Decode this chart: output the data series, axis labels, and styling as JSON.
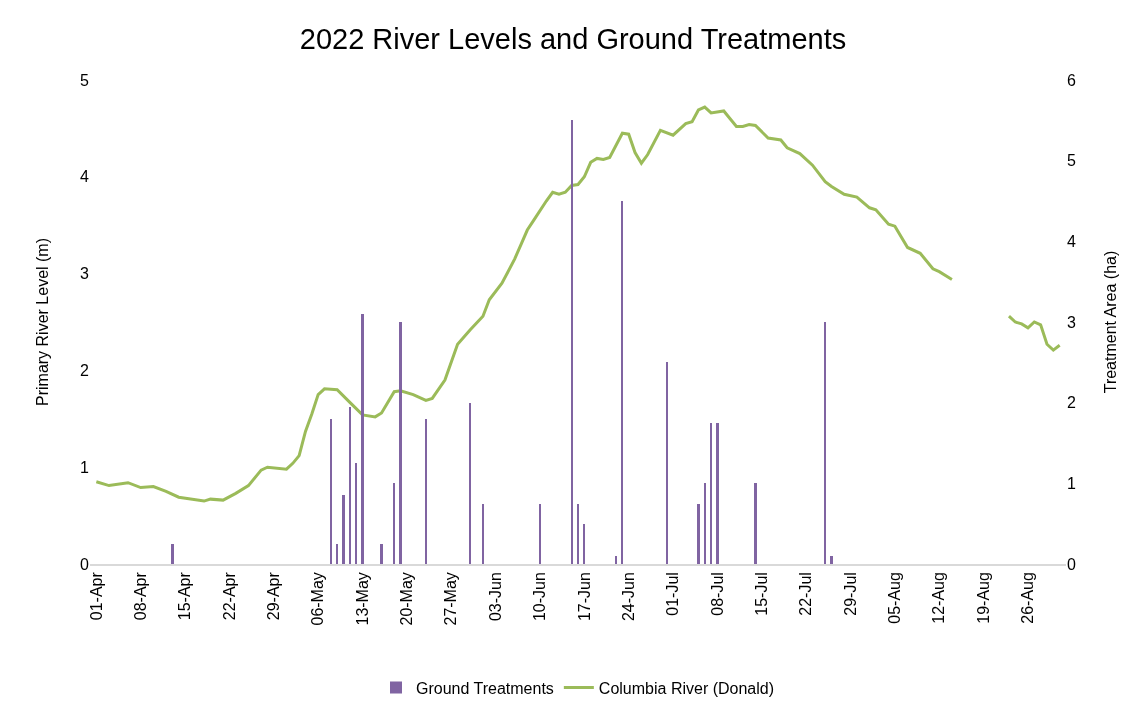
{
  "chart_data": {
    "type": "line",
    "title": "2022 River Levels and Ground Treatments",
    "ylabel": "Primary River Level (m)",
    "y2label": "Treatment Area (ha)",
    "xlim": [
      "2022-03-31",
      "2022-09-01"
    ],
    "xticks": [
      {
        "value": "2022-04-01",
        "label": "01-Apr"
      },
      {
        "value": "2022-04-08",
        "label": "08-Apr"
      },
      {
        "value": "2022-04-15",
        "label": "15-Apr"
      },
      {
        "value": "2022-04-22",
        "label": "22-Apr"
      },
      {
        "value": "2022-04-29",
        "label": "29-Apr"
      },
      {
        "value": "2022-05-06",
        "label": "06-May"
      },
      {
        "value": "2022-05-13",
        "label": "13-May"
      },
      {
        "value": "2022-05-20",
        "label": "20-May"
      },
      {
        "value": "2022-05-27",
        "label": "27-May"
      },
      {
        "value": "2022-06-03",
        "label": "03-Jun"
      },
      {
        "value": "2022-06-10",
        "label": "10-Jun"
      },
      {
        "value": "2022-06-17",
        "label": "17-Jun"
      },
      {
        "value": "2022-06-24",
        "label": "24-Jun"
      },
      {
        "value": "2022-07-01",
        "label": "01-Jul"
      },
      {
        "value": "2022-07-08",
        "label": "08-Jul"
      },
      {
        "value": "2022-07-15",
        "label": "15-Jul"
      },
      {
        "value": "2022-07-22",
        "label": "22-Jul"
      },
      {
        "value": "2022-07-29",
        "label": "29-Jul"
      },
      {
        "value": "2022-08-05",
        "label": "05-Aug"
      },
      {
        "value": "2022-08-12",
        "label": "12-Aug"
      },
      {
        "value": "2022-08-19",
        "label": "19-Aug"
      },
      {
        "value": "2022-08-26",
        "label": "26-Aug"
      }
    ],
    "ylim": [
      0,
      5
    ],
    "yticks": [
      0,
      1,
      2,
      3,
      4,
      5
    ],
    "y2lim": [
      0,
      6
    ],
    "y2ticks": [
      0,
      1,
      2,
      3,
      4,
      5,
      6
    ],
    "grid": false,
    "legend": "bottom",
    "line_style": "solid",
    "series": [
      {
        "name": "Ground Treatments",
        "type": "bar",
        "axis": "y2",
        "color": "#8064a2",
        "x": [
          "2022-04-13",
          "2022-05-08",
          "2022-05-09",
          "2022-05-10",
          "2022-05-11",
          "2022-05-12",
          "2022-05-13",
          "2022-05-16",
          "2022-05-18",
          "2022-05-19",
          "2022-05-23",
          "2022-05-30",
          "2022-06-01",
          "2022-06-10",
          "2022-06-15",
          "2022-06-16",
          "2022-06-17",
          "2022-06-22",
          "2022-06-23",
          "2022-06-30",
          "2022-07-05",
          "2022-07-06",
          "2022-07-07",
          "2022-07-08",
          "2022-07-14",
          "2022-07-25",
          "2022-07-26"
        ],
        "values": [
          0.25,
          1.8,
          0.25,
          0.85,
          1.95,
          1.25,
          3.1,
          0.25,
          1.0,
          3.0,
          1.8,
          2.0,
          0.75,
          0.75,
          5.5,
          0.75,
          0.5,
          0.1,
          4.5,
          2.5,
          0.75,
          1.0,
          1.75,
          1.75,
          1.0,
          3.0,
          0.1
        ]
      },
      {
        "name": "Columbia River (Donald)",
        "color": "#9bbb59",
        "x": [
          "2022-04-01",
          "2022-04-03",
          "2022-04-06",
          "2022-04-08",
          "2022-04-10",
          "2022-04-12",
          "2022-04-14",
          "2022-04-18",
          "2022-04-19",
          "2022-04-21",
          "2022-04-23",
          "2022-04-25",
          "2022-04-27",
          "2022-04-28",
          "2022-05-01",
          "2022-05-02",
          "2022-05-03",
          "2022-05-04",
          "2022-05-05",
          "2022-05-06",
          "2022-05-07",
          "2022-05-09",
          "2022-05-11",
          "2022-05-13",
          "2022-05-15",
          "2022-05-16",
          "2022-05-18",
          "2022-05-19",
          "2022-05-21",
          "2022-05-23",
          "2022-05-24",
          "2022-05-26",
          "2022-05-28",
          "2022-05-30",
          "2022-06-01",
          "2022-06-02",
          "2022-06-04",
          "2022-06-06",
          "2022-06-07",
          "2022-06-08",
          "2022-06-09",
          "2022-06-11",
          "2022-06-12",
          "2022-06-13",
          "2022-06-14",
          "2022-06-15",
          "2022-06-16",
          "2022-06-17",
          "2022-06-18",
          "2022-06-19",
          "2022-06-20",
          "2022-06-21",
          "2022-06-23",
          "2022-06-24",
          "2022-06-25",
          "2022-06-26",
          "2022-06-27",
          "2022-06-29",
          "2022-07-01",
          "2022-07-03",
          "2022-07-04",
          "2022-07-05",
          "2022-07-06",
          "2022-07-07",
          "2022-07-09",
          "2022-07-10",
          "2022-07-11",
          "2022-07-12",
          "2022-07-13",
          "2022-07-14",
          "2022-07-16",
          "2022-07-18",
          "2022-07-19",
          "2022-07-21",
          "2022-07-23",
          "2022-07-25",
          "2022-07-26",
          "2022-07-28",
          "2022-07-30",
          "2022-08-01",
          "2022-08-02",
          "2022-08-04",
          "2022-08-05",
          "2022-08-07",
          "2022-08-09",
          "2022-08-11",
          "2022-08-12",
          "2022-08-14",
          "2022-08-19",
          "2022-08-23",
          "2022-08-24",
          "2022-08-25",
          "2022-08-26",
          "2022-08-27",
          "2022-08-28",
          "2022-08-29",
          "2022-08-30",
          "2022-08-31"
        ],
        "values": [
          0.85,
          0.81,
          0.84,
          0.79,
          0.8,
          0.75,
          0.69,
          0.65,
          0.67,
          0.66,
          0.73,
          0.81,
          0.97,
          1.0,
          0.98,
          1.04,
          1.12,
          1.37,
          1.55,
          1.75,
          1.81,
          1.8,
          1.67,
          1.54,
          1.52,
          1.56,
          1.78,
          1.79,
          1.75,
          1.69,
          1.71,
          1.9,
          2.27,
          2.42,
          2.56,
          2.73,
          2.9,
          3.15,
          3.3,
          3.45,
          3.55,
          3.75,
          3.84,
          3.82,
          3.84,
          3.91,
          3.92,
          4.0,
          4.15,
          4.19,
          4.18,
          4.2,
          4.45,
          4.44,
          4.25,
          4.14,
          4.23,
          4.48,
          4.43,
          4.55,
          4.57,
          4.69,
          4.72,
          4.66,
          4.68,
          4.6,
          4.52,
          4.52,
          4.54,
          4.53,
          4.4,
          4.38,
          4.3,
          4.24,
          4.12,
          3.95,
          3.9,
          3.82,
          3.79,
          3.68,
          3.66,
          3.51,
          3.49,
          3.27,
          3.21,
          3.05,
          3.02,
          2.94,
          null,
          2.56,
          2.5,
          2.48,
          2.44,
          2.5,
          2.47,
          2.27,
          2.21,
          2.26
        ]
      }
    ]
  }
}
